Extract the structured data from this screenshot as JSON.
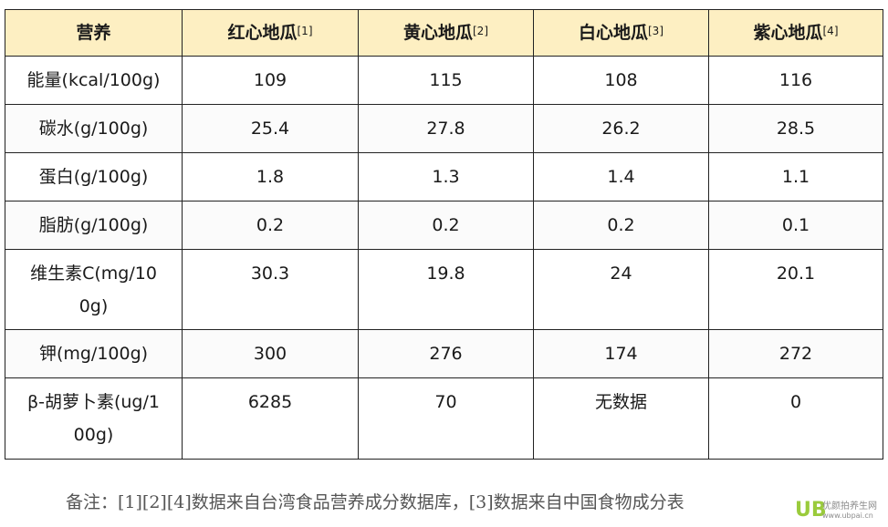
{
  "table": {
    "headers": [
      {
        "label": "营养",
        "sup": ""
      },
      {
        "label": "红心地瓜",
        "sup": "[1]"
      },
      {
        "label": "黄心地瓜",
        "sup": "[2]"
      },
      {
        "label": "白心地瓜",
        "sup": "[3]"
      },
      {
        "label": "紫心地瓜",
        "sup": "[4]"
      }
    ],
    "rows": [
      {
        "label": "能量(kcal/100g)",
        "values": [
          "109",
          "115",
          "108",
          "116"
        ]
      },
      {
        "label": "碳水(g/100g)",
        "values": [
          "25.4",
          "27.8",
          "26.2",
          "28.5"
        ]
      },
      {
        "label": "蛋白(g/100g)",
        "values": [
          "1.8",
          "1.3",
          "1.4",
          "1.1"
        ]
      },
      {
        "label": "脂肪(g/100g)",
        "values": [
          "0.2",
          "0.2",
          "0.2",
          "0.1"
        ]
      },
      {
        "label": "维生素C(mg/100g)",
        "values": [
          "30.3",
          "19.8",
          "24",
          "20.1"
        ]
      },
      {
        "label": "钾(mg/100g)",
        "values": [
          "300",
          "276",
          "174",
          "272"
        ]
      },
      {
        "label": "β-胡萝卜素(ug/100g)",
        "values": [
          "6285",
          "70",
          "无数据",
          "0"
        ]
      }
    ]
  },
  "footnote": "备注：[1][2][4]数据来自台湾食品营养成分数据库，[3]数据来自中国食物成分表",
  "watermark": {
    "logo": "UB",
    "name": "优颜拍养生网",
    "url": "www.ubpai.cn"
  }
}
